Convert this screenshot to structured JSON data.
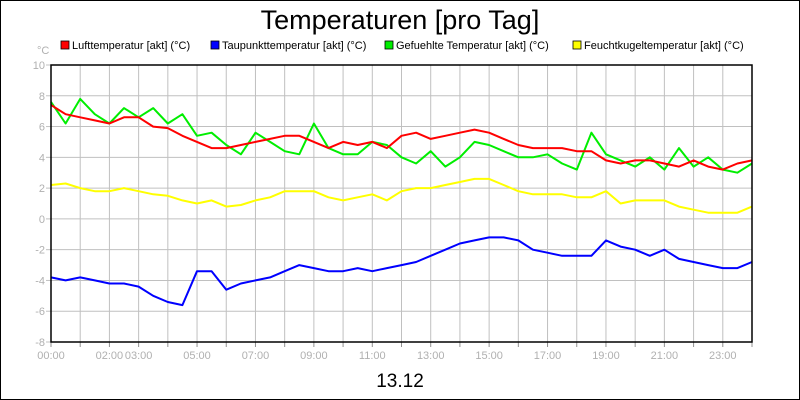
{
  "chart_data": {
    "type": "line",
    "title": "Temperaturen [pro Tag]",
    "xlabel": "13.12",
    "ylabel": "°C",
    "ylim": [
      -8,
      10
    ],
    "yticks": [
      "-8",
      "-6",
      "-4",
      "-2",
      "0",
      "2",
      "4",
      "6",
      "8",
      "10"
    ],
    "xlim": [
      "00:00",
      "24:00"
    ],
    "xtick_labels": [
      {
        "hour": 0,
        "label": "00:00"
      },
      {
        "hour": 2,
        "label": "02:00"
      },
      {
        "hour": 3,
        "label": "03:00"
      },
      {
        "hour": 5,
        "label": "05:00"
      },
      {
        "hour": 7,
        "label": "07:00"
      },
      {
        "hour": 9,
        "label": "09:00"
      },
      {
        "hour": 11,
        "label": "11:00"
      },
      {
        "hour": 13,
        "label": "13:00"
      },
      {
        "hour": 15,
        "label": "15:00"
      },
      {
        "hour": 17,
        "label": "17:00"
      },
      {
        "hour": 19,
        "label": "19:00"
      },
      {
        "hour": 21,
        "label": "21:00"
      },
      {
        "hour": 23,
        "label": "23:00"
      }
    ],
    "grid": true,
    "legend_placement": "top",
    "x": [
      "00:00",
      "00:30",
      "01:00",
      "01:30",
      "02:00",
      "02:30",
      "03:00",
      "03:30",
      "04:00",
      "04:30",
      "05:00",
      "05:30",
      "06:00",
      "06:30",
      "07:00",
      "07:30",
      "08:00",
      "08:30",
      "09:00",
      "09:30",
      "10:00",
      "10:30",
      "11:00",
      "11:30",
      "12:00",
      "12:30",
      "13:00",
      "13:30",
      "14:00",
      "14:30",
      "15:00",
      "15:30",
      "16:00",
      "16:30",
      "17:00",
      "17:30",
      "18:00",
      "18:30",
      "19:00",
      "19:30",
      "20:00",
      "20:30",
      "21:00",
      "21:30",
      "22:00",
      "22:30",
      "23:00",
      "23:30",
      "24:00"
    ],
    "series": [
      {
        "name": "Lufttemperatur [akt] (°C)",
        "color": "#ff0000",
        "values": [
          7.4,
          6.8,
          6.6,
          6.4,
          6.2,
          6.6,
          6.6,
          6.0,
          5.9,
          5.4,
          5.0,
          4.6,
          4.6,
          4.8,
          5.0,
          5.2,
          5.4,
          5.4,
          5.0,
          4.6,
          5.0,
          4.8,
          5.0,
          4.6,
          5.4,
          5.6,
          5.2,
          5.4,
          5.6,
          5.8,
          5.6,
          5.2,
          4.8,
          4.6,
          4.6,
          4.6,
          4.4,
          4.4,
          3.8,
          3.6,
          3.8,
          3.8,
          3.6,
          3.4,
          3.8,
          3.4,
          3.2,
          3.6,
          3.8
        ]
      },
      {
        "name": "Taupunkttemperatur [akt] (°C)",
        "color": "#0000ff",
        "values": [
          -3.8,
          -4.0,
          -3.8,
          -4.0,
          -4.2,
          -4.2,
          -4.4,
          -5.0,
          -5.4,
          -5.6,
          -3.4,
          -3.4,
          -4.6,
          -4.2,
          -4.0,
          -3.8,
          -3.4,
          -3.0,
          -3.2,
          -3.4,
          -3.4,
          -3.2,
          -3.4,
          -3.2,
          -3.0,
          -2.8,
          -2.4,
          -2.0,
          -1.6,
          -1.4,
          -1.2,
          -1.2,
          -1.4,
          -2.0,
          -2.2,
          -2.4,
          -2.4,
          -2.4,
          -1.4,
          -1.8,
          -2.0,
          -2.4,
          -2.0,
          -2.6,
          -2.8,
          -3.0,
          -3.2,
          -3.2,
          -2.8
        ]
      },
      {
        "name": "Gefuehlte Temperatur [akt] (°C)",
        "color": "#00ee00",
        "values": [
          7.6,
          6.2,
          7.8,
          6.8,
          6.2,
          7.2,
          6.6,
          7.2,
          6.2,
          6.8,
          5.4,
          5.6,
          4.8,
          4.2,
          5.6,
          5.0,
          4.4,
          4.2,
          6.2,
          4.6,
          4.2,
          4.2,
          5.0,
          4.8,
          4.0,
          3.6,
          4.4,
          3.4,
          4.0,
          5.0,
          4.8,
          4.4,
          4.0,
          4.0,
          4.2,
          3.6,
          3.2,
          5.6,
          4.2,
          3.8,
          3.4,
          4.0,
          3.2,
          4.6,
          3.4,
          4.0,
          3.2,
          3.0,
          3.6
        ]
      },
      {
        "name": "Feuchtkugeltemperatur [akt] (°C)",
        "color": "#ffff00",
        "values": [
          2.2,
          2.3,
          2.0,
          1.8,
          1.8,
          2.0,
          1.8,
          1.6,
          1.5,
          1.2,
          1.0,
          1.2,
          0.8,
          0.9,
          1.2,
          1.4,
          1.8,
          1.8,
          1.8,
          1.4,
          1.2,
          1.4,
          1.6,
          1.2,
          1.8,
          2.0,
          2.0,
          2.2,
          2.4,
          2.6,
          2.6,
          2.2,
          1.8,
          1.6,
          1.6,
          1.6,
          1.4,
          1.4,
          1.8,
          1.0,
          1.2,
          1.2,
          1.2,
          0.8,
          0.6,
          0.4,
          0.4,
          0.4,
          0.8
        ]
      }
    ]
  }
}
